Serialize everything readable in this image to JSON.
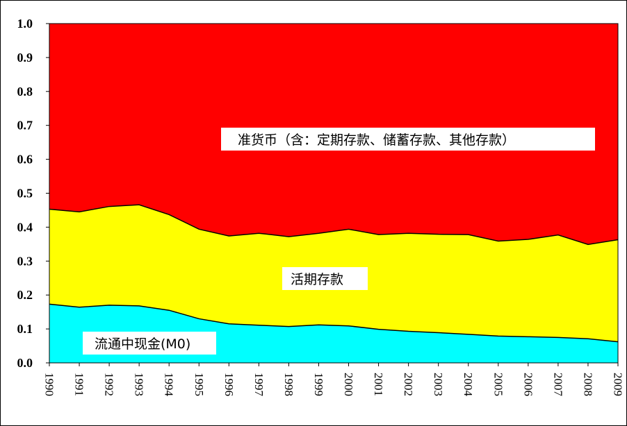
{
  "chart_data": {
    "type": "area",
    "stacked": true,
    "normalized": true,
    "x": [
      "1990",
      "1991",
      "1992",
      "1993",
      "1994",
      "1995",
      "1996",
      "1997",
      "1998",
      "1999",
      "2000",
      "2001",
      "2002",
      "2003",
      "2004",
      "2005",
      "2006",
      "2007",
      "2008",
      "2009"
    ],
    "ylim": [
      0,
      1.0
    ],
    "yticks": [
      "0.0",
      "0.1",
      "0.2",
      "0.3",
      "0.4",
      "0.5",
      "0.6",
      "0.7",
      "0.8",
      "0.9",
      "1.0"
    ],
    "grid": false,
    "legend": "none",
    "series": [
      {
        "name": "流通中现金(M0)",
        "color": "#00ffff",
        "values": [
          0.173,
          0.164,
          0.17,
          0.168,
          0.155,
          0.13,
          0.115,
          0.111,
          0.107,
          0.112,
          0.109,
          0.099,
          0.093,
          0.089,
          0.084,
          0.079,
          0.077,
          0.075,
          0.071,
          0.062
        ]
      },
      {
        "name": "活期存款",
        "color": "#ffff00",
        "values": [
          0.28,
          0.281,
          0.291,
          0.298,
          0.282,
          0.264,
          0.259,
          0.271,
          0.265,
          0.27,
          0.285,
          0.279,
          0.289,
          0.29,
          0.294,
          0.28,
          0.287,
          0.302,
          0.278,
          0.301
        ]
      },
      {
        "name": "准货币（含：定期存款、储蓄存款、其他存款）",
        "color": "#ff0000",
        "values": [
          0.547,
          0.555,
          0.539,
          0.534,
          0.563,
          0.606,
          0.626,
          0.618,
          0.628,
          0.618,
          0.606,
          0.622,
          0.618,
          0.621,
          0.622,
          0.641,
          0.636,
          0.623,
          0.651,
          0.637
        ]
      }
    ]
  }
}
